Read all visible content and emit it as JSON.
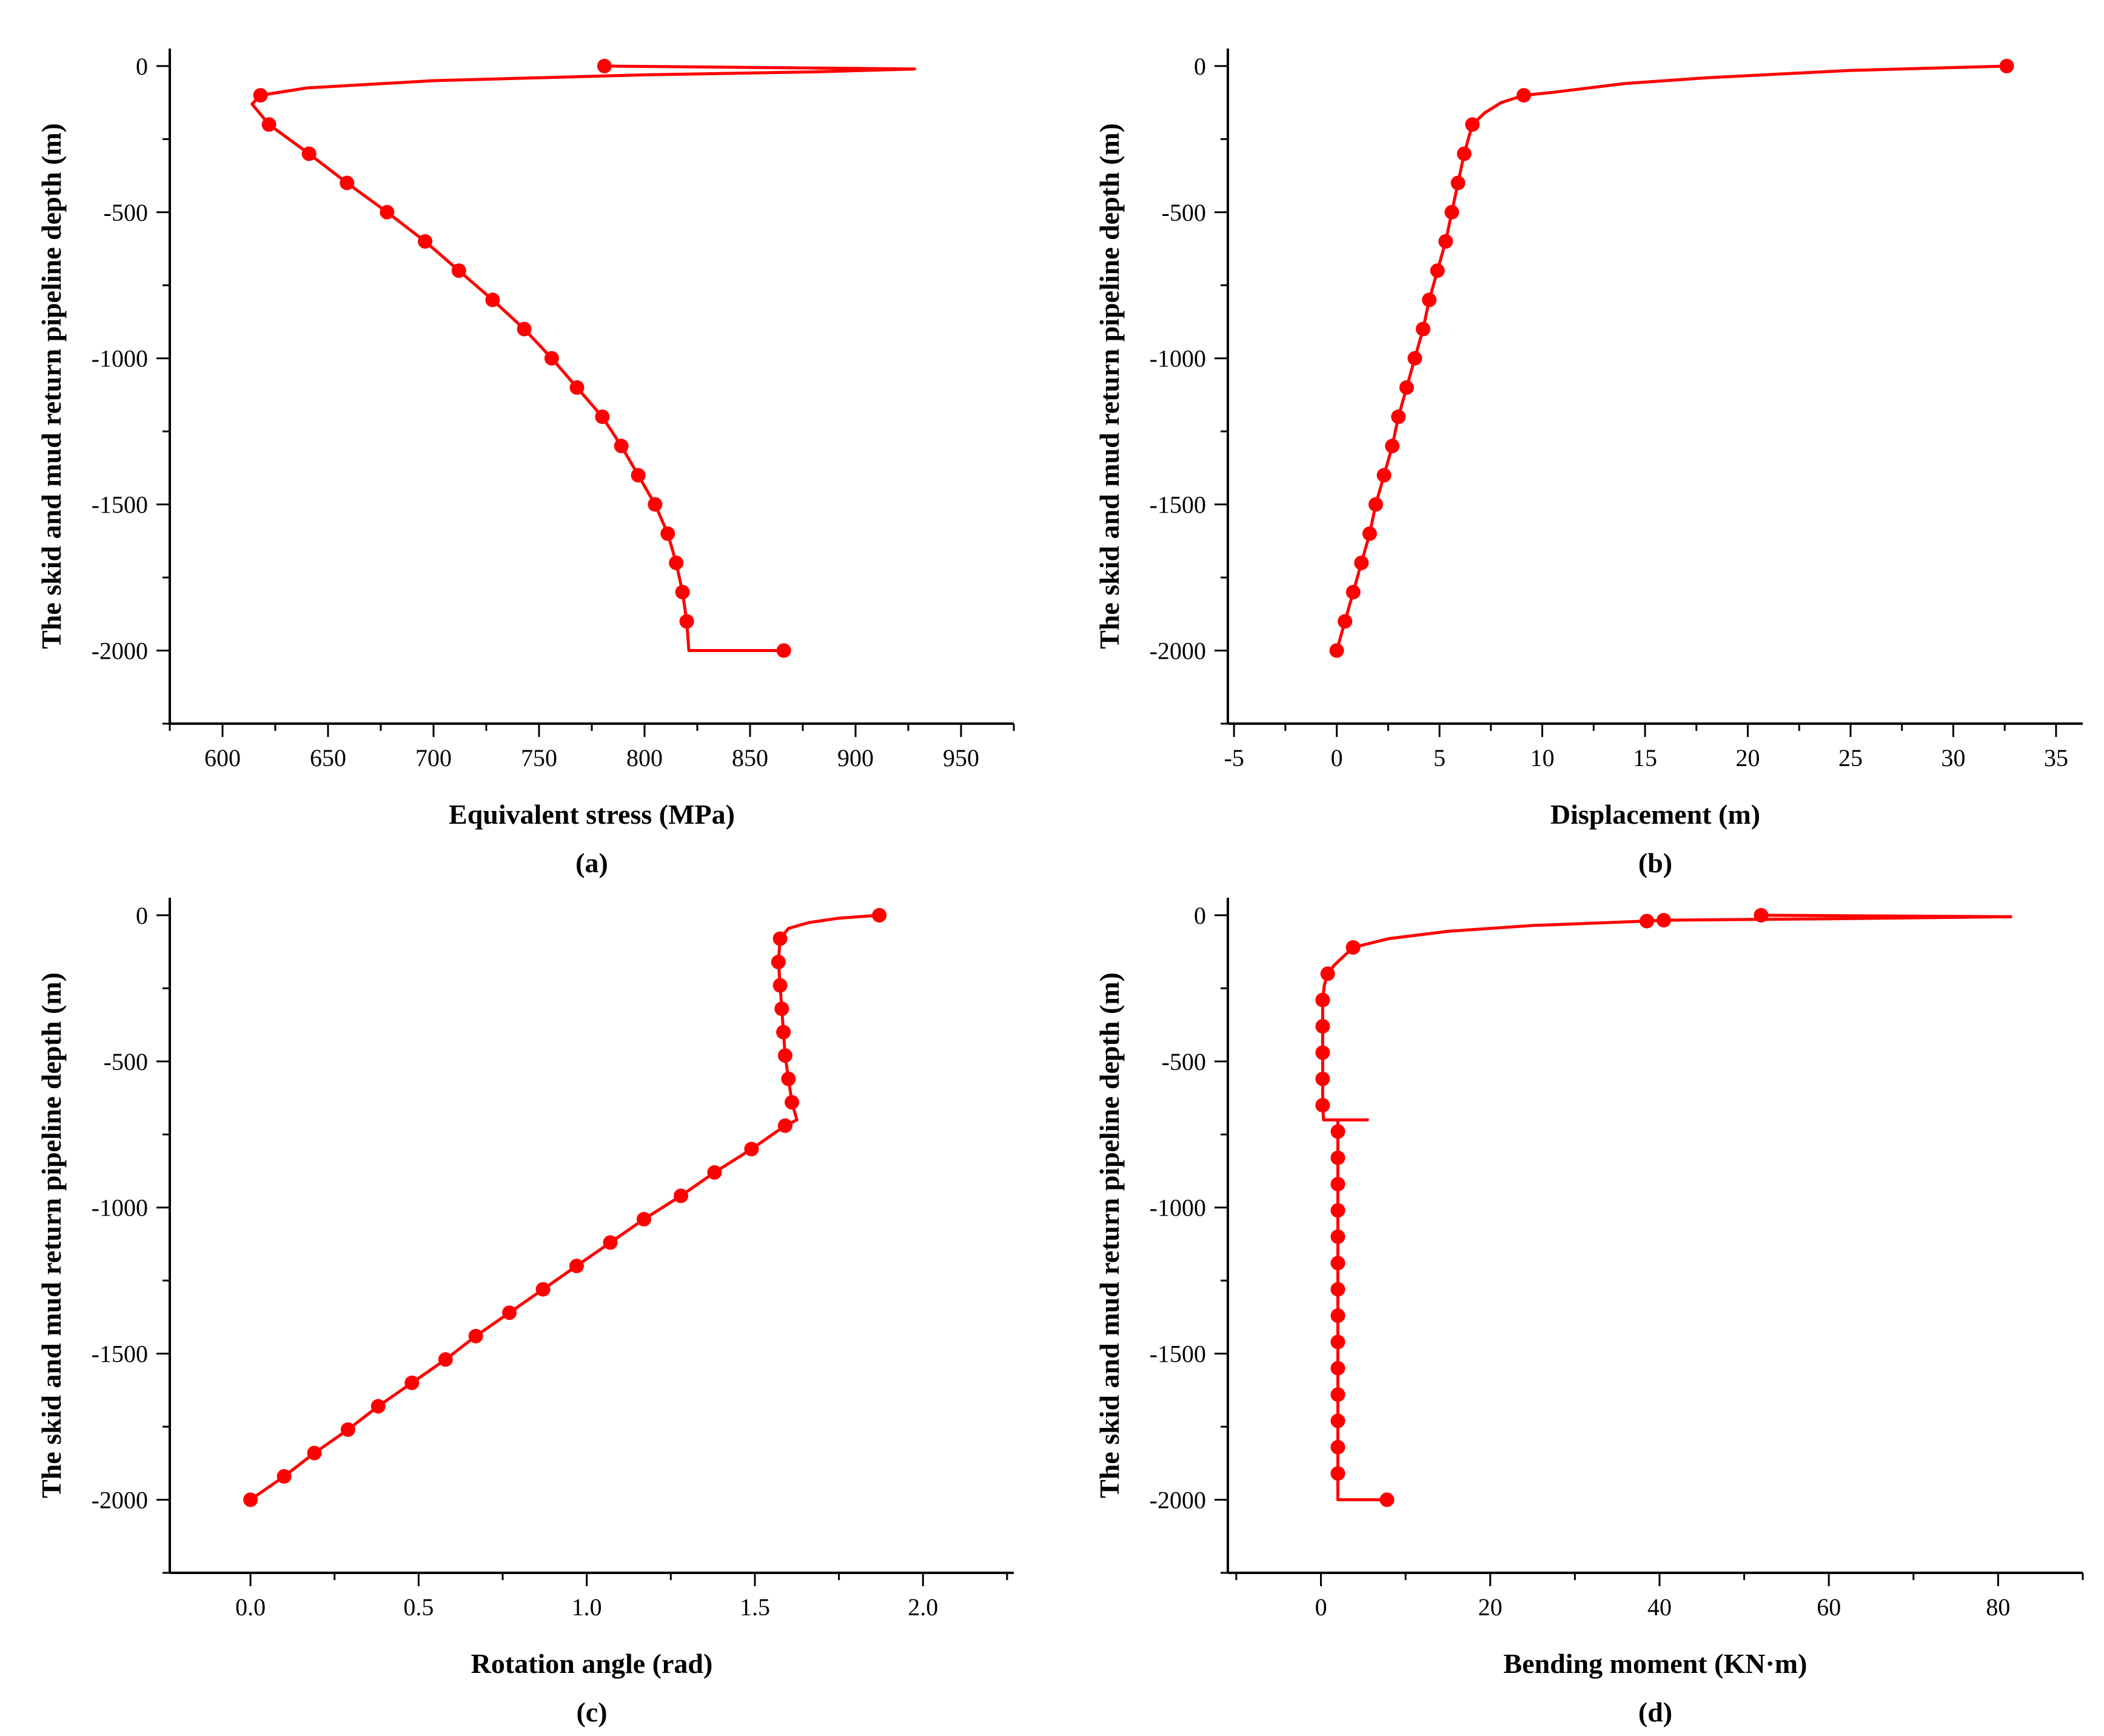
{
  "colors": {
    "series": "#ff0000",
    "axis": "#000000",
    "background": "#ffffff"
  },
  "chart_data": [
    {
      "type": "line",
      "panel_label": "(a)",
      "title": "",
      "xlabel": "Equivalent stress (MPa)",
      "ylabel": "The skid and mud return pipeline depth (m)",
      "xlim": [
        575,
        975
      ],
      "ylim": [
        -2250,
        60
      ],
      "xticks": [
        600,
        650,
        700,
        750,
        800,
        850,
        900,
        950
      ],
      "yticks": [
        0,
        -500,
        -1000,
        -1500,
        -2000
      ],
      "grid": false,
      "legend": "none",
      "series": [
        {
          "name": "Equivalent stress",
          "line": [
            [
              781,
              0
            ],
            [
              928,
              -10
            ],
            [
              880,
              -20
            ],
            [
              800,
              -30
            ],
            [
              700,
              -50
            ],
            [
              640,
              -75
            ],
            [
              618,
              -100
            ],
            [
              614,
              -130
            ],
            [
              622,
              -200
            ],
            [
              641,
              -300
            ],
            [
              659,
              -400
            ],
            [
              678,
              -500
            ],
            [
              696,
              -600
            ],
            [
              712,
              -700
            ],
            [
              728,
              -800
            ],
            [
              743,
              -900
            ],
            [
              756,
              -1000
            ],
            [
              768,
              -1100
            ],
            [
              780,
              -1200
            ],
            [
              789,
              -1300
            ],
            [
              797,
              -1400
            ],
            [
              805,
              -1500
            ],
            [
              811,
              -1600
            ],
            [
              815,
              -1700
            ],
            [
              818,
              -1800
            ],
            [
              820,
              -1900
            ],
            [
              821,
              -2000
            ],
            [
              866,
              -2000
            ]
          ],
          "markers": [
            [
              781,
              0
            ],
            [
              618,
              -100
            ],
            [
              622,
              -200
            ],
            [
              641,
              -300
            ],
            [
              659,
              -400
            ],
            [
              678,
              -500
            ],
            [
              696,
              -600
            ],
            [
              712,
              -700
            ],
            [
              728,
              -800
            ],
            [
              743,
              -900
            ],
            [
              756,
              -1000
            ],
            [
              768,
              -1100
            ],
            [
              780,
              -1200
            ],
            [
              789,
              -1300
            ],
            [
              797,
              -1400
            ],
            [
              805,
              -1500
            ],
            [
              811,
              -1600
            ],
            [
              815,
              -1700
            ],
            [
              818,
              -1800
            ],
            [
              820,
              -1900
            ],
            [
              866,
              -2000
            ]
          ]
        }
      ]
    },
    {
      "type": "line",
      "panel_label": "(b)",
      "title": "",
      "xlabel": "Displacement (m)",
      "ylabel": "The skid and mud return pipeline depth (m)",
      "xlim": [
        -5.3,
        36.3
      ],
      "ylim": [
        -2250,
        60
      ],
      "xticks": [
        -5,
        0,
        5,
        10,
        15,
        20,
        25,
        30,
        35
      ],
      "yticks": [
        0,
        -500,
        -1000,
        -1500,
        -2000
      ],
      "grid": false,
      "legend": "none",
      "series": [
        {
          "name": "Displacement",
          "line": [
            [
              32.6,
              0
            ],
            [
              25,
              -15
            ],
            [
              18,
              -40
            ],
            [
              14,
              -60
            ],
            [
              10.5,
              -90
            ],
            [
              9.1,
              -100
            ],
            [
              8,
              -125
            ],
            [
              7.2,
              -160
            ],
            [
              6.6,
              -200
            ],
            [
              6.2,
              -300
            ],
            [
              5.9,
              -400
            ],
            [
              5.6,
              -500
            ],
            [
              5.3,
              -600
            ],
            [
              4.9,
              -700
            ],
            [
              4.5,
              -800
            ],
            [
              4.2,
              -900
            ],
            [
              3.8,
              -1000
            ],
            [
              3.4,
              -1100
            ],
            [
              3.0,
              -1200
            ],
            [
              2.7,
              -1300
            ],
            [
              2.3,
              -1400
            ],
            [
              1.9,
              -1500
            ],
            [
              1.6,
              -1600
            ],
            [
              1.2,
              -1700
            ],
            [
              0.8,
              -1800
            ],
            [
              0.4,
              -1900
            ],
            [
              0.0,
              -2000
            ]
          ],
          "markers": [
            [
              32.6,
              0
            ],
            [
              9.1,
              -100
            ],
            [
              6.6,
              -200
            ],
            [
              6.2,
              -300
            ],
            [
              5.9,
              -400
            ],
            [
              5.6,
              -500
            ],
            [
              5.3,
              -600
            ],
            [
              4.9,
              -700
            ],
            [
              4.5,
              -800
            ],
            [
              4.2,
              -900
            ],
            [
              3.8,
              -1000
            ],
            [
              3.4,
              -1100
            ],
            [
              3.0,
              -1200
            ],
            [
              2.7,
              -1300
            ],
            [
              2.3,
              -1400
            ],
            [
              1.9,
              -1500
            ],
            [
              1.6,
              -1600
            ],
            [
              1.2,
              -1700
            ],
            [
              0.8,
              -1800
            ],
            [
              0.4,
              -1900
            ],
            [
              0.0,
              -2000
            ]
          ]
        }
      ]
    },
    {
      "type": "line",
      "panel_label": "(c)",
      "title": "",
      "xlabel": "Rotation angle (rad)",
      "ylabel": "The skid and mud return pipeline depth (m)",
      "xlim": [
        -0.24,
        2.27
      ],
      "ylim": [
        -2250,
        60
      ],
      "xticks": [
        0.0,
        0.5,
        1.0,
        1.5,
        2.0
      ],
      "yticks": [
        0,
        -500,
        -1000,
        -1500,
        -2000
      ],
      "grid": false,
      "legend": "none",
      "series": [
        {
          "name": "Rotation angle",
          "line": [
            [
              1.87,
              0
            ],
            [
              1.75,
              -10
            ],
            [
              1.66,
              -25
            ],
            [
              1.6,
              -45
            ],
            [
              1.575,
              -80
            ],
            [
              1.57,
              -160
            ],
            [
              1.575,
              -240
            ],
            [
              1.58,
              -320
            ],
            [
              1.585,
              -400
            ],
            [
              1.59,
              -480
            ],
            [
              1.6,
              -560
            ],
            [
              1.61,
              -640
            ],
            [
              1.625,
              -700
            ],
            [
              1.59,
              -720
            ],
            [
              1.49,
              -800
            ],
            [
              1.38,
              -880
            ],
            [
              1.28,
              -960
            ],
            [
              1.17,
              -1040
            ],
            [
              1.07,
              -1120
            ],
            [
              0.97,
              -1200
            ],
            [
              0.87,
              -1280
            ],
            [
              0.77,
              -1360
            ],
            [
              0.67,
              -1440
            ],
            [
              0.58,
              -1520
            ],
            [
              0.48,
              -1600
            ],
            [
              0.38,
              -1680
            ],
            [
              0.29,
              -1760
            ],
            [
              0.19,
              -1840
            ],
            [
              0.1,
              -1920
            ],
            [
              0.0,
              -2000
            ]
          ],
          "markers": [
            [
              1.87,
              0
            ],
            [
              1.575,
              -80
            ],
            [
              1.57,
              -160
            ],
            [
              1.575,
              -240
            ],
            [
              1.58,
              -320
            ],
            [
              1.585,
              -400
            ],
            [
              1.59,
              -480
            ],
            [
              1.6,
              -560
            ],
            [
              1.61,
              -640
            ],
            [
              1.59,
              -720
            ],
            [
              1.49,
              -800
            ],
            [
              1.38,
              -880
            ],
            [
              1.28,
              -960
            ],
            [
              1.17,
              -1040
            ],
            [
              1.07,
              -1120
            ],
            [
              0.97,
              -1200
            ],
            [
              0.87,
              -1280
            ],
            [
              0.77,
              -1360
            ],
            [
              0.67,
              -1440
            ],
            [
              0.58,
              -1520
            ],
            [
              0.48,
              -1600
            ],
            [
              0.38,
              -1680
            ],
            [
              0.29,
              -1760
            ],
            [
              0.19,
              -1840
            ],
            [
              0.1,
              -1920
            ],
            [
              0.0,
              -2000
            ]
          ]
        }
      ]
    },
    {
      "type": "line",
      "panel_label": "(d)",
      "title": "",
      "xlabel": "Bending moment (KN·m)",
      "ylabel": "The skid and mud return pipeline depth (m)",
      "xlim": [
        -11,
        90
      ],
      "ylim": [
        -2250,
        60
      ],
      "xticks": [
        0,
        20,
        40,
        60,
        80
      ],
      "yticks": [
        0,
        -500,
        -1000,
        -1500,
        -2000
      ],
      "grid": false,
      "legend": "none",
      "series": [
        {
          "name": "Bending moment",
          "line": [
            [
              52,
              0
            ],
            [
              81.5,
              -5
            ],
            [
              60,
              -12
            ],
            [
              40.5,
              -17
            ],
            [
              38.5,
              -20
            ],
            [
              25,
              -35
            ],
            [
              15,
              -55
            ],
            [
              8,
              -80
            ],
            [
              3.8,
              -110
            ],
            [
              1.6,
              -170
            ],
            [
              0.8,
              -200
            ],
            [
              0.4,
              -240
            ],
            [
              0.2,
              -290
            ],
            [
              0.2,
              -380
            ],
            [
              0.2,
              -470
            ],
            [
              0.2,
              -560
            ],
            [
              0.2,
              -650
            ],
            [
              0.3,
              -700
            ],
            [
              5.5,
              -700
            ],
            [
              2,
              -700
            ],
            [
              2,
              -740
            ],
            [
              2,
              -830
            ],
            [
              2,
              -920
            ],
            [
              2,
              -1010
            ],
            [
              2,
              -1100
            ],
            [
              2,
              -1190
            ],
            [
              2,
              -1280
            ],
            [
              2,
              -1370
            ],
            [
              2,
              -1460
            ],
            [
              2,
              -1550
            ],
            [
              2,
              -1640
            ],
            [
              2,
              -1730
            ],
            [
              2,
              -1820
            ],
            [
              2,
              -1910
            ],
            [
              2,
              -2000
            ],
            [
              7.8,
              -2000
            ]
          ],
          "markers": [
            [
              52,
              0
            ],
            [
              40.5,
              -17
            ],
            [
              38.5,
              -20
            ],
            [
              3.8,
              -110
            ],
            [
              0.8,
              -200
            ],
            [
              0.2,
              -290
            ],
            [
              0.2,
              -380
            ],
            [
              0.2,
              -470
            ],
            [
              0.2,
              -560
            ],
            [
              0.2,
              -650
            ],
            [
              2,
              -740
            ],
            [
              2,
              -830
            ],
            [
              2,
              -920
            ],
            [
              2,
              -1010
            ],
            [
              2,
              -1100
            ],
            [
              2,
              -1190
            ],
            [
              2,
              -1280
            ],
            [
              2,
              -1370
            ],
            [
              2,
              -1460
            ],
            [
              2,
              -1550
            ],
            [
              2,
              -1640
            ],
            [
              2,
              -1730
            ],
            [
              2,
              -1820
            ],
            [
              2,
              -1910
            ],
            [
              7.8,
              -2000
            ]
          ]
        }
      ]
    }
  ]
}
